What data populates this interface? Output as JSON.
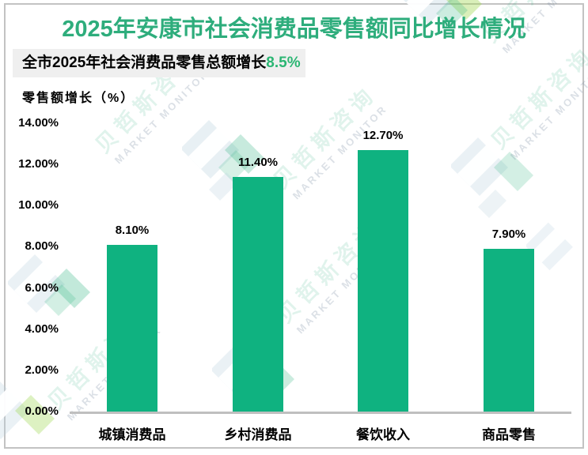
{
  "title": "2025年安康市社会消费品零售额同比增长情况",
  "subtitle": {
    "prefix": "全市2025年社会消费品零售总额增长",
    "highlight": "8.5%"
  },
  "watermark": {
    "cn": "贝哲斯咨询",
    "en": "MARKET MONITOR"
  },
  "colors": {
    "title": "#2ead7c",
    "highlight": "#2bb673",
    "bar": "#0fb280",
    "axis_line": "#bfbfbf",
    "subtitle_bg": "#efefef",
    "frame_border": "#c3c3c3"
  },
  "chart_data": {
    "type": "bar",
    "title": "2025年安康市社会消费品零售额同比增长情况",
    "subtitle": "全市2025年社会消费品零售总额增长8.5%",
    "xlabel": "",
    "ylabel": "零售额增长（%）",
    "categories": [
      "城镇消费品",
      "乡村消费品",
      "餐饮收入",
      "商品零售"
    ],
    "values": [
      8.1,
      11.4,
      12.7,
      7.9
    ],
    "value_labels": [
      "8.10%",
      "11.40%",
      "12.70%",
      "7.90%"
    ],
    "yticks": [
      "14.00%",
      "12.00%",
      "10.00%",
      "8.00%",
      "6.00%",
      "4.00%",
      "2.00%",
      "0.00%"
    ],
    "ylim": [
      0,
      14
    ],
    "ytick_step": 2,
    "grid": false,
    "legend": false,
    "bar_color": "#0fb280"
  }
}
